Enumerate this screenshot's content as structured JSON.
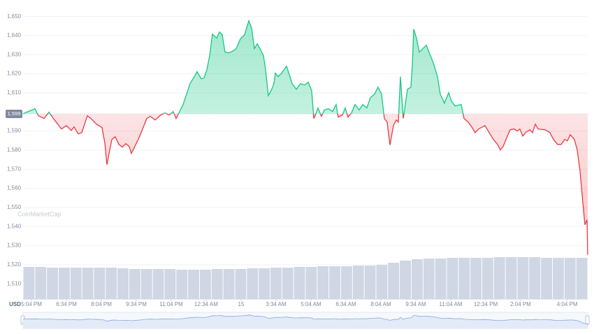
{
  "chart_data": {
    "type": "line",
    "y_axis_unit": "USD",
    "watermark": "CoinMarketCap",
    "color_up": "#16c784",
    "color_down": "#ea3943",
    "reference": {
      "value": 1599,
      "label": "1,599"
    },
    "xlim": [
      -0.36,
      23.88
    ],
    "ylim": [
      1502,
      1655
    ],
    "grid": true,
    "xticks": [
      {
        "value": 0,
        "label": "5:04 PM"
      },
      {
        "value": 1.5,
        "label": "6:34 PM"
      },
      {
        "value": 3,
        "label": "8:04 PM"
      },
      {
        "value": 4.5,
        "label": "9:34 PM"
      },
      {
        "value": 6,
        "label": "11:04 PM"
      },
      {
        "value": 7.5,
        "label": "12:34 AM"
      },
      {
        "value": 9,
        "label": "15"
      },
      {
        "value": 10.5,
        "label": "3:34 AM"
      },
      {
        "value": 12,
        "label": "5:04 AM"
      },
      {
        "value": 13.5,
        "label": "6:34 AM"
      },
      {
        "value": 15,
        "label": "8:04 AM"
      },
      {
        "value": 16.5,
        "label": "9:34 AM"
      },
      {
        "value": 18,
        "label": "11:04 AM"
      },
      {
        "value": 19.5,
        "label": "12:34 PM"
      },
      {
        "value": 21,
        "label": "2:04 PM"
      },
      {
        "value": 23,
        "label": "4:04 PM"
      }
    ],
    "yticks": [
      {
        "value": 1510,
        "label": "1,510"
      },
      {
        "value": 1520,
        "label": "1,520"
      },
      {
        "value": 1530,
        "label": "1,530"
      },
      {
        "value": 1540,
        "label": "1,540"
      },
      {
        "value": 1550,
        "label": "1,550"
      },
      {
        "value": 1560,
        "label": "1,560"
      },
      {
        "value": 1570,
        "label": "1,570"
      },
      {
        "value": 1580,
        "label": "1,580"
      },
      {
        "value": 1590,
        "label": "1,590"
      },
      {
        "value": 1610,
        "label": "1,610"
      },
      {
        "value": 1620,
        "label": "1,620"
      },
      {
        "value": 1630,
        "label": "1,630"
      },
      {
        "value": 1640,
        "label": "1,640"
      },
      {
        "value": 1650,
        "label": "1,650"
      }
    ],
    "x": [
      -0.36,
      0.15,
      0.3,
      0.54,
      0.75,
      0.99,
      1.29,
      1.5,
      1.71,
      1.83,
      2.01,
      2.16,
      2.4,
      2.55,
      2.79,
      3.03,
      3.15,
      3.24,
      3.45,
      3.6,
      3.75,
      3.9,
      4.05,
      4.2,
      4.29,
      4.41,
      4.65,
      4.95,
      5.1,
      5.31,
      5.55,
      5.73,
      5.91,
      6.09,
      6.21,
      6.39,
      6.51,
      6.69,
      6.81,
      6.99,
      7.11,
      7.29,
      7.41,
      7.53,
      7.65,
      7.77,
      7.95,
      8.07,
      8.19,
      8.31,
      8.46,
      8.61,
      8.79,
      8.97,
      9.15,
      9.33,
      9.45,
      9.57,
      9.69,
      9.81,
      9.96,
      10.05,
      10.17,
      10.29,
      10.41,
      10.47,
      10.59,
      10.74,
      10.95,
      11.1,
      11.19,
      11.37,
      11.55,
      11.73,
      11.88,
      12.03,
      12.12,
      12.21,
      12.3,
      12.45,
      12.57,
      12.75,
      12.93,
      13.08,
      13.17,
      13.35,
      13.47,
      13.59,
      13.74,
      13.89,
      14.07,
      14.22,
      14.4,
      14.55,
      14.73,
      14.88,
      15.03,
      15.15,
      15.27,
      15.39,
      15.54,
      15.66,
      15.75,
      15.84,
      15.96,
      16.05,
      16.14,
      16.29,
      16.35,
      16.41,
      16.53,
      16.65,
      16.8,
      16.95,
      17.07,
      17.25,
      17.34,
      17.43,
      17.55,
      17.73,
      17.91,
      18.03,
      18.18,
      18.45,
      18.57,
      18.75,
      18.9,
      19.05,
      19.2,
      19.47,
      19.65,
      19.83,
      20.01,
      20.13,
      20.25,
      20.37,
      20.55,
      20.73,
      20.85,
      20.97,
      21.09,
      21.21,
      21.39,
      21.51,
      21.63,
      21.75,
      22.05,
      22.26,
      22.41,
      22.59,
      22.74,
      22.89,
      23.01,
      23.13,
      23.31,
      23.43,
      23.55,
      23.67,
      23.76,
      23.85,
      23.88
    ],
    "values": [
      1599.1,
      1601.7,
      1598.0,
      1596.6,
      1599.9,
      1595.8,
      1591.1,
      1592.9,
      1590.3,
      1592.2,
      1588.5,
      1589.2,
      1598.0,
      1596.6,
      1593.6,
      1591.8,
      1583.8,
      1572.4,
      1585.6,
      1587.0,
      1583.0,
      1581.6,
      1583.4,
      1581.9,
      1578.3,
      1581.2,
      1587.4,
      1596.6,
      1597.7,
      1595.8,
      1598.4,
      1599.5,
      1598.4,
      1600.2,
      1596.6,
      1601.0,
      1603.9,
      1610.5,
      1614.9,
      1618.5,
      1621.1,
      1617.4,
      1617.8,
      1622.2,
      1629.5,
      1640.8,
      1638.7,
      1641.9,
      1640.5,
      1631.3,
      1631.0,
      1631.7,
      1633.2,
      1638.3,
      1640.5,
      1647.8,
      1644.1,
      1633.2,
      1635.7,
      1633.2,
      1629.5,
      1622.2,
      1608.6,
      1611.2,
      1614.9,
      1620.4,
      1618.5,
      1620.4,
      1624.0,
      1618.5,
      1614.9,
      1611.9,
      1614.9,
      1614.1,
      1615.6,
      1611.2,
      1596.6,
      1599.1,
      1602.1,
      1597.7,
      1601.0,
      1601.7,
      1600.2,
      1603.9,
      1597.3,
      1598.4,
      1602.1,
      1597.3,
      1599.5,
      1603.9,
      1601.0,
      1603.9,
      1602.1,
      1607.5,
      1609.4,
      1613.0,
      1609.4,
      1596.6,
      1594.7,
      1582.7,
      1592.9,
      1595.8,
      1594.7,
      1618.5,
      1596.6,
      1603.9,
      1611.9,
      1613.0,
      1624.0,
      1643.4,
      1638.7,
      1631.3,
      1633.2,
      1635.0,
      1631.3,
      1625.8,
      1622.2,
      1618.5,
      1609.4,
      1604.6,
      1610.1,
      1605.7,
      1603.2,
      1603.9,
      1596.6,
      1594.7,
      1592.2,
      1589.2,
      1591.1,
      1592.9,
      1589.2,
      1585.6,
      1583.0,
      1580.1,
      1581.9,
      1585.6,
      1590.7,
      1591.1,
      1590.0,
      1591.1,
      1587.4,
      1589.2,
      1590.7,
      1589.2,
      1593.6,
      1591.1,
      1590.7,
      1589.2,
      1585.6,
      1583.0,
      1583.0,
      1585.6,
      1584.9,
      1588.1,
      1585.6,
      1580.1,
      1569.1,
      1552.6,
      1540.9,
      1543.5,
      1525.2
    ],
    "volume": {
      "color": "#cfd6e4",
      "ylim": [
        0,
        100
      ],
      "values": [
        46,
        46,
        45,
        45,
        45,
        45,
        45,
        45,
        44,
        43,
        43,
        43,
        43,
        42,
        42,
        42,
        43,
        43,
        43,
        44,
        44,
        45,
        45,
        46,
        46,
        47,
        47,
        47,
        48,
        48,
        49,
        52,
        55,
        57,
        58,
        58,
        59,
        59,
        59,
        59,
        60,
        60,
        60,
        60,
        59,
        59,
        59,
        59
      ]
    }
  }
}
